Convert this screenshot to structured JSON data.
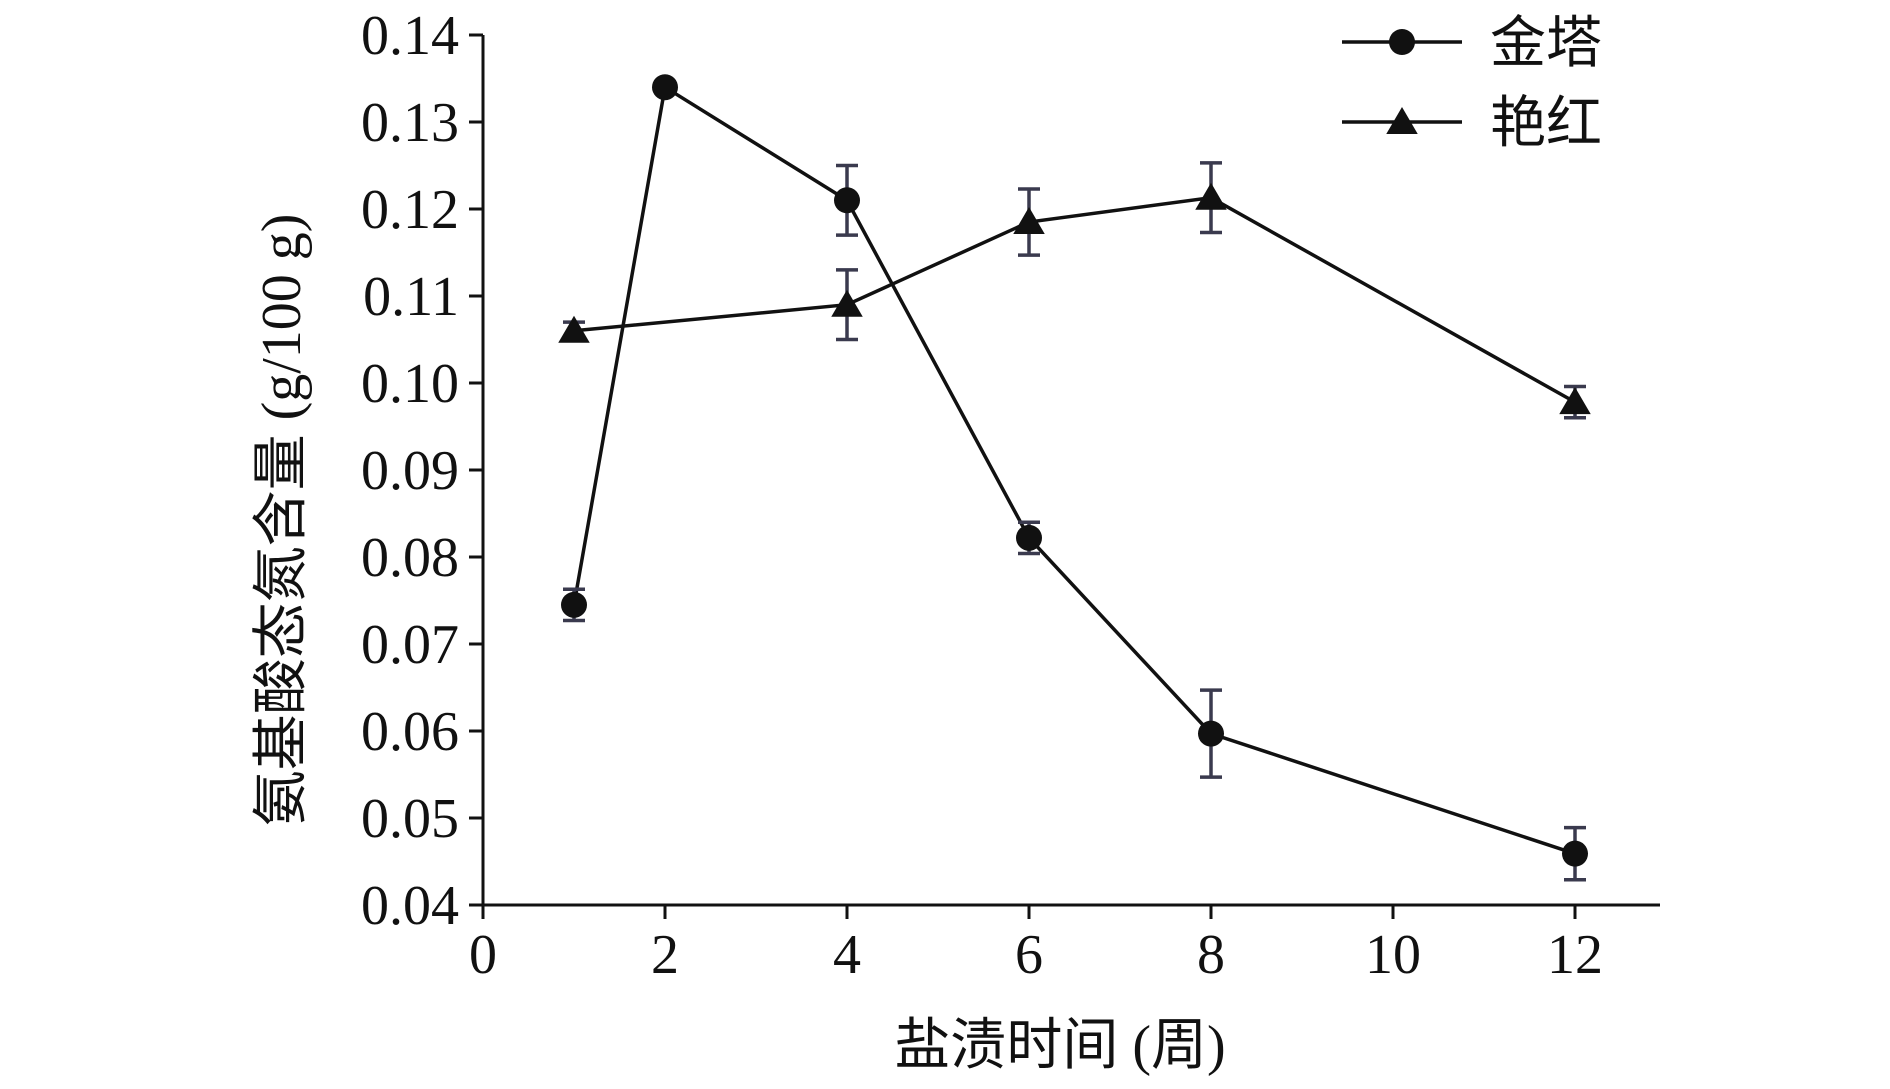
{
  "chart_data": {
    "type": "line",
    "xlabel": "盐渍时间 (周)",
    "ylabel": "氨基酸态氮含量 (g/100 g)",
    "xlim": [
      0,
      13
    ],
    "ylim": [
      0.04,
      0.14
    ],
    "xticks": [
      0,
      2,
      4,
      6,
      8,
      10,
      12
    ],
    "yticks": [
      0.04,
      0.05,
      0.06,
      0.07,
      0.08,
      0.09,
      0.1,
      0.11,
      0.12,
      0.13,
      0.14
    ],
    "ytick_labels": [
      "0.04",
      "0.05",
      "0.06",
      "0.07",
      "0.08",
      "0.09",
      "0.10",
      "0.11",
      "0.12",
      "0.13",
      "0.14"
    ],
    "grid": false,
    "legend_position": "top-right",
    "series": [
      {
        "name": "金塔",
        "marker": "circle",
        "color": "#111111",
        "x": [
          1,
          2,
          4,
          6,
          8,
          12
        ],
        "y": [
          0.0745,
          0.134,
          0.121,
          0.0822,
          0.0597,
          0.0459
        ],
        "error": [
          0.0018,
          0.0005,
          0.004,
          0.0018,
          0.005,
          0.003
        ]
      },
      {
        "name": "艳红",
        "marker": "triangle",
        "color": "#111111",
        "x": [
          1,
          4,
          6,
          8,
          12
        ],
        "y": [
          0.106,
          0.109,
          0.1185,
          0.1213,
          0.0978
        ],
        "error": [
          0.001,
          0.004,
          0.0038,
          0.004,
          0.0018
        ]
      }
    ],
    "error_bar_color": "#3a3a4e"
  }
}
